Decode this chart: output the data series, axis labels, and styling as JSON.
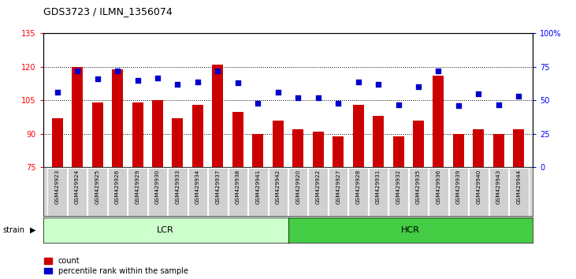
{
  "title": "GDS3723 / ILMN_1356074",
  "samples": [
    "GSM429923",
    "GSM429924",
    "GSM429925",
    "GSM429926",
    "GSM429929",
    "GSM429930",
    "GSM429933",
    "GSM429934",
    "GSM429937",
    "GSM429938",
    "GSM429941",
    "GSM429942",
    "GSM429920",
    "GSM429922",
    "GSM429927",
    "GSM429928",
    "GSM429931",
    "GSM429932",
    "GSM429935",
    "GSM429936",
    "GSM429939",
    "GSM429940",
    "GSM429943",
    "GSM429944"
  ],
  "counts": [
    97,
    120,
    104,
    119,
    104,
    105,
    97,
    103,
    121,
    100,
    90,
    96,
    92,
    91,
    89,
    103,
    98,
    89,
    96,
    116,
    90,
    92,
    90,
    92
  ],
  "percentile_ranks": [
    56,
    72,
    66,
    72,
    65,
    67,
    62,
    64,
    72,
    63,
    48,
    56,
    52,
    52,
    48,
    64,
    62,
    47,
    60,
    72,
    46,
    55,
    47,
    53
  ],
  "lcr_samples": 12,
  "hcr_samples": 12,
  "bar_color": "#cc0000",
  "dot_color": "#0000cc",
  "lcr_color": "#ccffcc",
  "hcr_color": "#44cc44",
  "ylim_left": [
    75,
    135
  ],
  "ylim_right": [
    0,
    100
  ],
  "yticks_left": [
    75,
    90,
    105,
    120,
    135
  ],
  "yticks_right": [
    0,
    25,
    50,
    75,
    100
  ],
  "ytick_labels_right": [
    "0",
    "25",
    "50",
    "75",
    "100%"
  ],
  "legend_count": "count",
  "legend_pct": "percentile rank within the sample",
  "strain_label": "strain",
  "lcr_label": "LCR",
  "hcr_label": "HCR",
  "grid_lines": [
    90,
    105,
    120
  ]
}
